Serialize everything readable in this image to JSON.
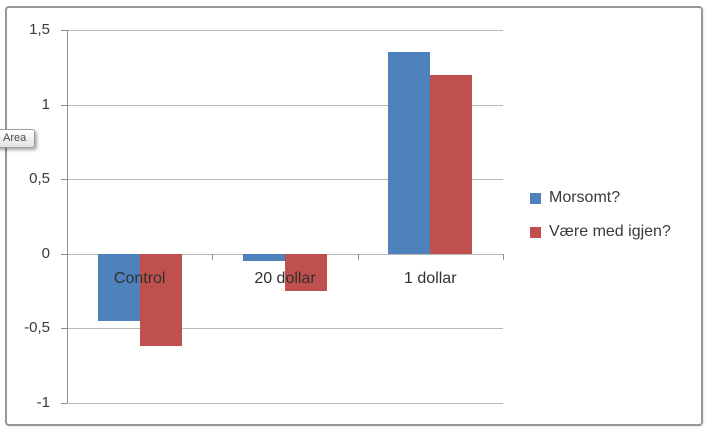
{
  "tooltip": {
    "label": "Area"
  },
  "chart_data": {
    "type": "bar",
    "categories": [
      "Control",
      "20 dollar",
      "1 dollar"
    ],
    "series": [
      {
        "name": "Morsomt?",
        "color": "#4f81bd",
        "values": [
          -0.45,
          -0.05,
          1.35
        ]
      },
      {
        "name": "Være med igjen?",
        "color": "#c0504d",
        "values": [
          -0.62,
          -0.25,
          1.2
        ]
      }
    ],
    "y_ticks": [
      {
        "label": "1,5",
        "value": 1.5
      },
      {
        "label": "1",
        "value": 1
      },
      {
        "label": "0,5",
        "value": 0.5
      },
      {
        "label": "0",
        "value": 0
      },
      {
        "label": "-0,5",
        "value": -0.5
      },
      {
        "label": "-1",
        "value": -1
      }
    ],
    "ylim": [
      -1,
      1.5
    ],
    "grid": true,
    "legend_position": "right",
    "title": "",
    "xlabel": "",
    "ylabel": ""
  }
}
